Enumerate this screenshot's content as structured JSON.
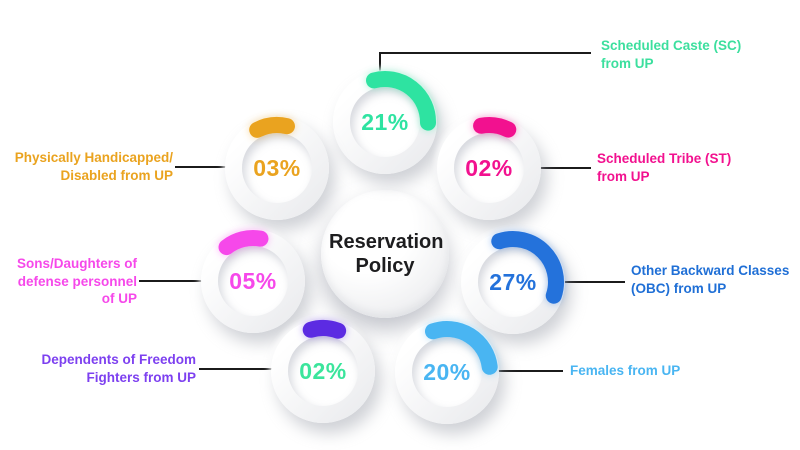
{
  "chart_data": {
    "type": "donut-gauge-infographic",
    "title": "Reservation Policy",
    "categories": [
      "Scheduled Caste (SC) from UP",
      "Physically Handicapped/Disabled from UP",
      "Scheduled Tribe (ST) from UP",
      "Sons/Daughters of defense personnel of UP",
      "Other Backward Classes (OBC) from UP",
      "Dependents of Freedom Fighters from UP",
      "Females from UP"
    ],
    "values": [
      21,
      3,
      2,
      5,
      27,
      2,
      20
    ],
    "unit": "%",
    "legend_position": "around-gauges",
    "grid": false
  },
  "gauges": [
    {
      "id": "sc",
      "percent": 21,
      "value_label": "21%",
      "arc_color": "#2ee3a1",
      "value_color": "#2ee3a1",
      "label_color": "#3cdf9e",
      "label_lines": [
        "Scheduled Caste (SC)",
        "from UP"
      ]
    },
    {
      "id": "ph",
      "percent": 3,
      "value_label": "03%",
      "arc_color": "#eaa31f",
      "value_color": "#eaa31f",
      "label_color": "#eaa31f",
      "label_lines": [
        "Physically Handicapped/",
        "Disabled from UP"
      ]
    },
    {
      "id": "st",
      "percent": 2,
      "value_label": "02%",
      "arc_color": "#f2118f",
      "value_color": "#f2118f",
      "label_color": "#f2118f",
      "label_lines": [
        "Scheduled Tribe (ST)",
        "from UP"
      ]
    },
    {
      "id": "defense",
      "percent": 5,
      "value_label": "05%",
      "arc_color": "#f648ea",
      "value_color": "#f648ea",
      "label_color": "#f648ea",
      "label_lines": [
        "Sons/Daughters of",
        "defense personnel",
        "of UP"
      ]
    },
    {
      "id": "obc",
      "percent": 27,
      "value_label": "27%",
      "arc_color": "#2472db",
      "value_color": "#2472db",
      "label_color": "#1f6fd6",
      "label_lines": [
        "Other Backward Classes",
        "(OBC) from UP"
      ]
    },
    {
      "id": "freedom",
      "percent": 2,
      "value_label": "02%",
      "arc_color": "#5c2be2",
      "value_color": "#3be59c",
      "label_color": "#7d40f0",
      "label_lines": [
        "Dependents of Freedom",
        "Fighters from UP"
      ]
    },
    {
      "id": "females",
      "percent": 20,
      "value_label": "20%",
      "arc_color": "#49b5f2",
      "value_color": "#49b5f2",
      "label_color": "#49b5f2",
      "label_lines": [
        "Females from UP"
      ]
    }
  ],
  "center": {
    "title": "Reservation Policy"
  },
  "connector_color": "#1b1b1b"
}
